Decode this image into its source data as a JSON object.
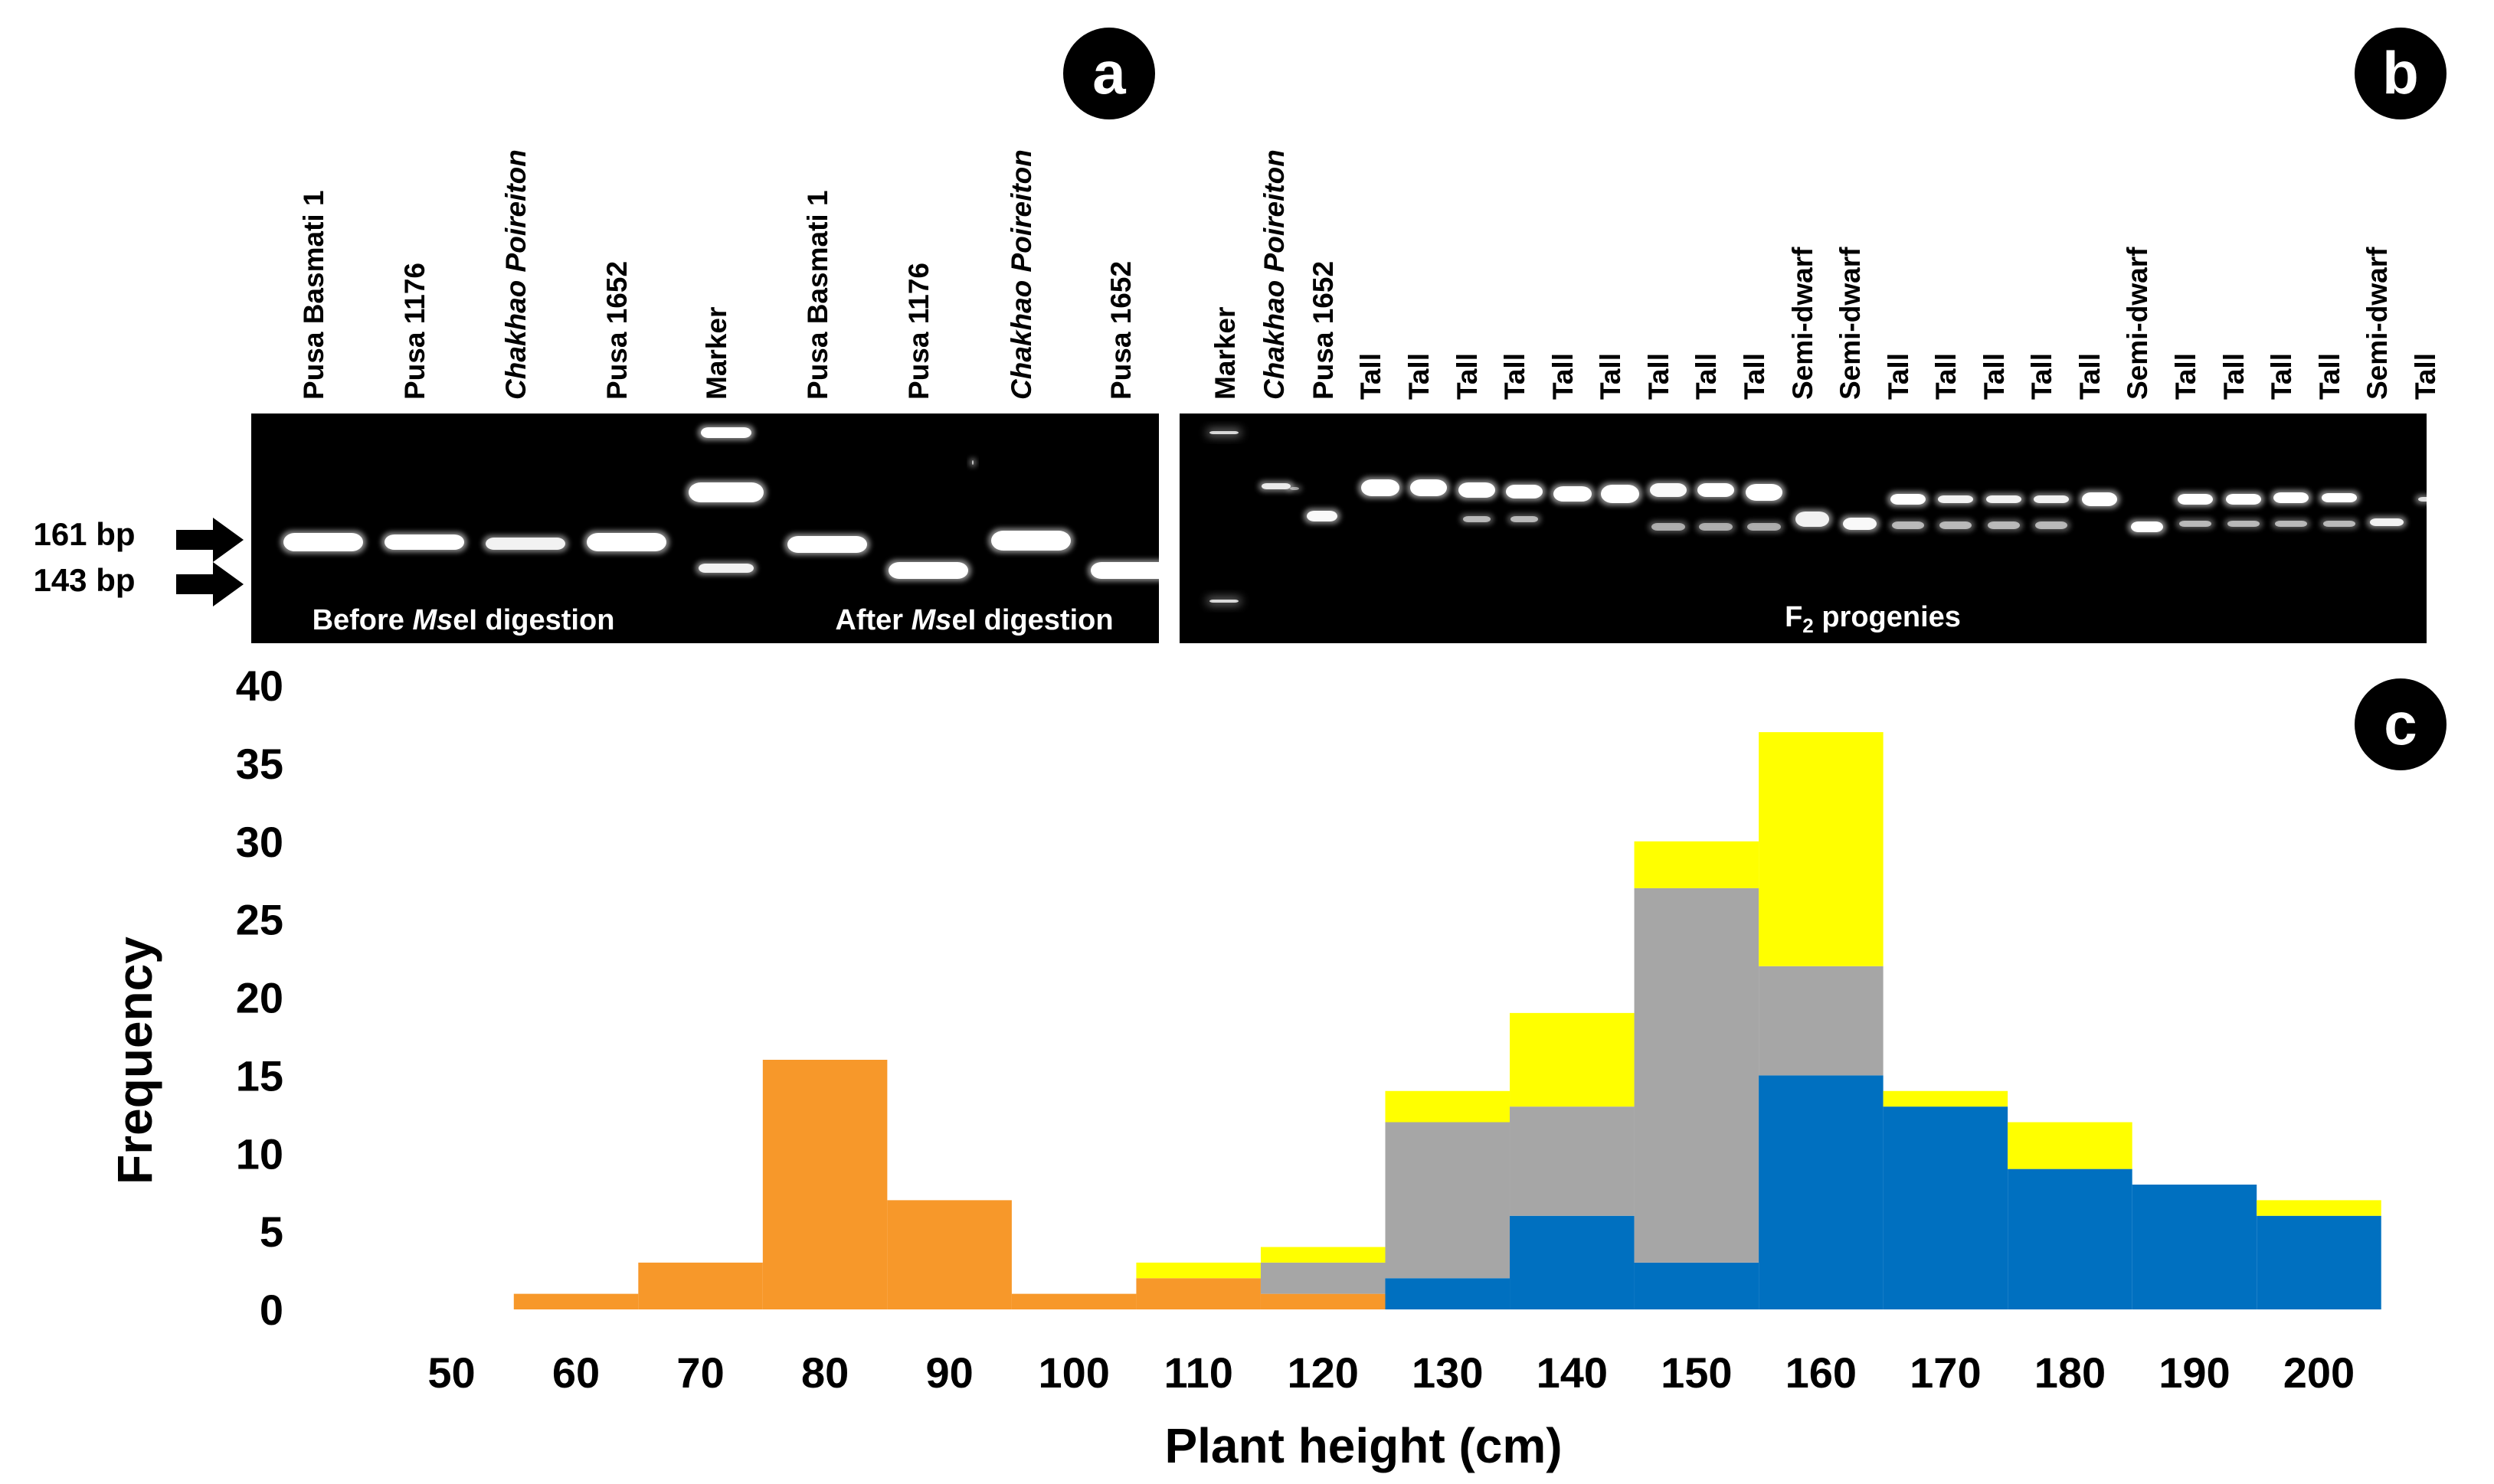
{
  "panel_a": {
    "letter": "a",
    "lanes": [
      {
        "label": "Pusa Basmati 1",
        "italic": false
      },
      {
        "label": "Pusa 1176",
        "italic": false
      },
      {
        "label": "Chakhao Poireiton",
        "italic": true
      },
      {
        "label": "Pusa 1652",
        "italic": false
      },
      {
        "label": "Marker",
        "italic": false
      },
      {
        "label": "Pusa Basmati 1",
        "italic": false
      },
      {
        "label": "Pusa 1176",
        "italic": false
      },
      {
        "label": "Chakhao Poireiton",
        "italic": true
      },
      {
        "label": "Pusa 1652",
        "italic": false
      }
    ],
    "marker_161": "161 bp",
    "marker_143": "143 bp",
    "caption_before": {
      "pre": "Before ",
      "italic": "Ms",
      "post": "eI digestion"
    },
    "caption_after": {
      "pre": "After ",
      "italic": "Ms",
      "post": "eI digestion"
    }
  },
  "panel_b": {
    "letter": "b",
    "lanes": [
      {
        "label": "Marker",
        "italic": false
      },
      {
        "label": "Chakhao Poireiton",
        "italic": true
      },
      {
        "label": "Pusa 1652",
        "italic": false
      },
      {
        "label": "Tall",
        "italic": false
      },
      {
        "label": "Tall",
        "italic": false
      },
      {
        "label": "Tall",
        "italic": false
      },
      {
        "label": "Tall",
        "italic": false
      },
      {
        "label": "Tall",
        "italic": false
      },
      {
        "label": "Tall",
        "italic": false
      },
      {
        "label": "Tall",
        "italic": false
      },
      {
        "label": "Tall",
        "italic": false
      },
      {
        "label": "Tall",
        "italic": false
      },
      {
        "label": "Semi-dwarf",
        "italic": false
      },
      {
        "label": "Semi-dwarf",
        "italic": false
      },
      {
        "label": "Tall",
        "italic": false
      },
      {
        "label": "Tall",
        "italic": false
      },
      {
        "label": "Tall",
        "italic": false
      },
      {
        "label": "Tall",
        "italic": false
      },
      {
        "label": "Tall",
        "italic": false
      },
      {
        "label": "Semi-dwarf",
        "italic": false
      },
      {
        "label": "Tall",
        "italic": false
      },
      {
        "label": "Tall",
        "italic": false
      },
      {
        "label": "Tall",
        "italic": false
      },
      {
        "label": "Tall",
        "italic": false
      },
      {
        "label": "Semi-dwarf",
        "italic": false
      },
      {
        "label": "Tall",
        "italic": false
      }
    ],
    "caption": {
      "pre": "F",
      "sub": "2",
      "post": " progenies"
    }
  },
  "chart_data": {
    "type": "bar",
    "stacked": true,
    "panel_letter": "c",
    "xlabel": "Plant height (cm)",
    "ylabel": "Frequency",
    "xlim": [
      45,
      210
    ],
    "ylim": [
      0,
      40
    ],
    "xticks": [
      50,
      60,
      70,
      80,
      90,
      100,
      110,
      120,
      130,
      140,
      150,
      160,
      170,
      180,
      190,
      200
    ],
    "yticks": [
      0,
      5,
      10,
      15,
      20,
      25,
      30,
      35,
      40
    ],
    "bin_width": 10,
    "bins": [
      60,
      70,
      80,
      90,
      100,
      110,
      120,
      130,
      140,
      150,
      160,
      170,
      180,
      190,
      200
    ],
    "series": [
      {
        "name": "orange",
        "color": "#F7982A",
        "values": [
          1,
          3,
          16,
          7,
          1,
          2,
          1,
          0,
          0,
          0,
          0,
          0,
          0,
          0,
          0
        ]
      },
      {
        "name": "blue",
        "color": "#0070C0",
        "values": [
          0,
          0,
          0,
          0,
          0,
          0,
          0,
          2,
          6,
          3,
          15,
          13,
          9,
          8,
          6
        ]
      },
      {
        "name": "gray",
        "color": "#A6A6A6",
        "values": [
          0,
          0,
          0,
          0,
          0,
          0,
          2,
          10,
          7,
          24,
          7,
          0,
          0,
          0,
          0
        ]
      },
      {
        "name": "yellow",
        "color": "#FFFF00",
        "values": [
          0,
          0,
          0,
          0,
          0,
          1,
          1,
          2,
          6,
          3,
          15,
          1,
          3,
          0,
          1
        ]
      }
    ]
  }
}
